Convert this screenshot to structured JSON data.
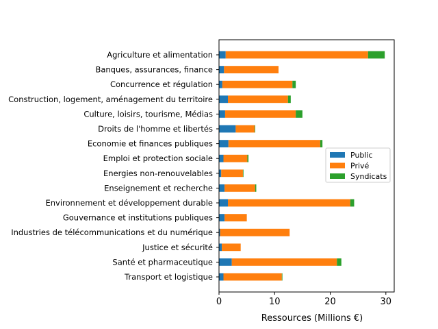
{
  "chart_data": {
    "type": "bar",
    "orientation": "horizontal",
    "stacked": true,
    "xlabel": "Ressources (Millions €)",
    "ylabel": "",
    "xlim": [
      0,
      31.5
    ],
    "xticks": [
      0,
      10,
      20,
      30
    ],
    "grid": false,
    "legend_position": "center-right",
    "categories": [
      "Agriculture et alimentation",
      "Banques, assurances, finance",
      "Concurrence et régulation",
      "Construction, logement, aménagement du territoire",
      "Culture, loisirs, tourisme, Médias",
      "Droits de l'homme et libertés",
      "Economie et finances publiques",
      "Emploi et protection sociale",
      "Energies non-renouvelables",
      "Enseignement et recherche",
      "Environnement et développement durable",
      "Gouvernance et institutions publiques",
      "Industries de télécommunications et du numérique",
      "Justice et sécurité",
      "Santé et pharmaceutique",
      "Transport et logistique"
    ],
    "series": [
      {
        "name": "Public",
        "color": "#1f77b4",
        "values": [
          1.2,
          0.9,
          0.6,
          1.6,
          1.1,
          3.0,
          1.7,
          0.8,
          0.4,
          1.0,
          1.6,
          1.0,
          0.2,
          0.5,
          2.3,
          0.8
        ]
      },
      {
        "name": "Privé",
        "color": "#ff7f0e",
        "values": [
          25.6,
          9.8,
          12.6,
          10.8,
          12.7,
          3.4,
          16.5,
          4.3,
          3.9,
          5.5,
          22.0,
          4.0,
          12.5,
          3.4,
          18.9,
          10.5
        ]
      },
      {
        "name": "Syndicats",
        "color": "#2ca02c",
        "values": [
          3.0,
          0.0,
          0.6,
          0.5,
          1.2,
          0.1,
          0.4,
          0.2,
          0.1,
          0.2,
          0.7,
          0.0,
          0.0,
          0.0,
          0.8,
          0.1
        ]
      }
    ]
  }
}
